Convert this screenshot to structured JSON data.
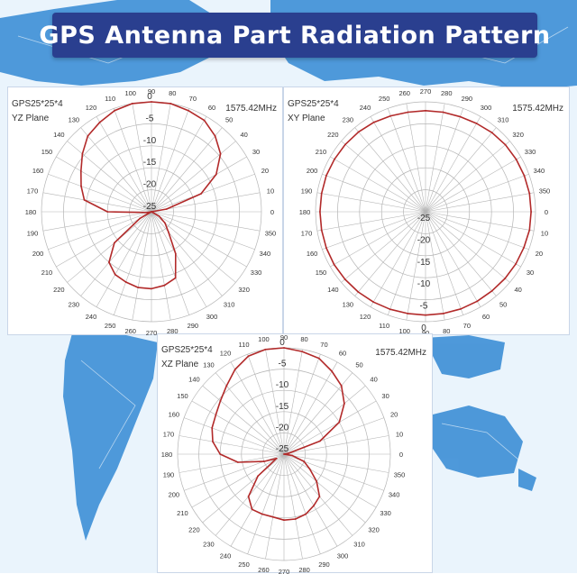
{
  "title": "GPS Antenna Part Radiation Pattern",
  "colors": {
    "banner": "#2a3f8f",
    "trace": "#b22a2a",
    "grid": "#b5b5b5",
    "map_land": "#3d8fd6",
    "map_sea": "#eaf4fc"
  },
  "chart_data": [
    {
      "type": "polar",
      "model": "GPS25*25*4",
      "plane": "YZ Plane",
      "frequency": "1575.42MHz",
      "radial_ticks": [
        "0",
        "-5",
        "-10",
        "-15",
        "-20",
        "-25"
      ],
      "rlim": [
        -25,
        0
      ],
      "angle_ticks": [
        "0",
        "10",
        "20",
        "30",
        "40",
        "50",
        "60",
        "70",
        "80",
        "90",
        "100",
        "110",
        "120",
        "130",
        "140",
        "150",
        "160",
        "170",
        "180",
        "190",
        "200",
        "210",
        "220",
        "230",
        "240",
        "250",
        "260",
        "270",
        "280",
        "290",
        "300",
        "310",
        "320",
        "330",
        "340",
        "350"
      ],
      "angle_zero": "right",
      "angle_direction": "counterclockwise",
      "series": [
        {
          "angles": [
            0,
            10,
            20,
            30,
            40,
            50,
            60,
            70,
            80,
            90,
            100,
            110,
            120,
            130,
            140,
            150,
            160,
            170,
            180,
            190,
            200,
            210,
            220,
            230,
            240,
            250,
            260,
            270,
            280,
            290,
            300,
            310,
            320,
            330,
            340,
            350
          ],
          "values": [
            -25,
            -21.5,
            -13,
            -8,
            -4.5,
            -2.5,
            -1,
            -0.5,
            0,
            0,
            0,
            -0.5,
            -1.5,
            -2.5,
            -4.5,
            -6.5,
            -8,
            -9.5,
            -15,
            -24,
            -25,
            -22,
            -14,
            -10,
            -8.5,
            -8,
            -7.5,
            -7.5,
            -8,
            -9,
            -14,
            -19,
            -21,
            -23,
            -25,
            -25
          ]
        }
      ]
    },
    {
      "type": "polar",
      "model": "GPS25*25*4",
      "plane": "XY Plane",
      "frequency": "1575.42MHz",
      "radial_ticks": [
        "0",
        "-5",
        "-10",
        "-15",
        "-20",
        "-25"
      ],
      "rlim": [
        -25,
        0
      ],
      "angle_ticks": [
        "0",
        "10",
        "20",
        "30",
        "40",
        "50",
        "60",
        "70",
        "80",
        "90",
        "100",
        "110",
        "120",
        "130",
        "140",
        "150",
        "160",
        "170",
        "180",
        "190",
        "200",
        "210",
        "220",
        "230",
        "240",
        "250",
        "260",
        "270",
        "280",
        "290",
        "300",
        "310",
        "320",
        "330",
        "340",
        "350"
      ],
      "angle_zero": "right",
      "angle_direction": "clockwise",
      "series": [
        {
          "angles": [
            0,
            10,
            20,
            30,
            40,
            50,
            60,
            70,
            80,
            90,
            100,
            110,
            120,
            130,
            140,
            150,
            160,
            170,
            180,
            190,
            200,
            210,
            220,
            230,
            240,
            250,
            260,
            270,
            280,
            290,
            300,
            310,
            320,
            330,
            340,
            350
          ],
          "values": [
            -1,
            -1,
            -1.2,
            -1.3,
            -1.4,
            -1.5,
            -1.5,
            -1.5,
            -1.5,
            -1.5,
            -1.5,
            -1.4,
            -1.3,
            -1.2,
            -1.1,
            -1,
            -1,
            -1,
            -1,
            -1,
            -1,
            -1.1,
            -1.2,
            -1.3,
            -1.5,
            -1.8,
            -2,
            -2,
            -2,
            -2,
            -1.8,
            -1.5,
            -1.3,
            -1.2,
            -1.1,
            -1
          ]
        }
      ]
    },
    {
      "type": "polar",
      "model": "GPS25*25*4",
      "plane": "XZ Plane",
      "frequency": "1575.42MHz",
      "radial_ticks": [
        "0",
        "-5",
        "-10",
        "-15",
        "-20",
        "-25"
      ],
      "rlim": [
        -25,
        0
      ],
      "angle_ticks": [
        "0",
        "10",
        "20",
        "30",
        "40",
        "50",
        "60",
        "70",
        "80",
        "90",
        "100",
        "110",
        "120",
        "130",
        "140",
        "150",
        "160",
        "170",
        "180",
        "190",
        "200",
        "210",
        "220",
        "230",
        "240",
        "250",
        "260",
        "270",
        "280",
        "290",
        "300",
        "310",
        "320",
        "330",
        "340",
        "350"
      ],
      "angle_zero": "right",
      "angle_direction": "counterclockwise",
      "series": [
        {
          "angles": [
            0,
            10,
            20,
            30,
            40,
            50,
            60,
            70,
            80,
            90,
            100,
            110,
            120,
            130,
            140,
            150,
            160,
            170,
            180,
            190,
            200,
            210,
            220,
            230,
            240,
            250,
            260,
            270,
            280,
            290,
            300,
            310,
            320,
            330,
            340,
            350
          ],
          "values": [
            -25,
            -24,
            -16,
            -10,
            -6.5,
            -4,
            -2.5,
            -1,
            -0.5,
            0,
            0,
            -0.5,
            -2,
            -4,
            -5.5,
            -6.5,
            -7,
            -8,
            -10,
            -14,
            -20,
            -23,
            -17,
            -12,
            -10,
            -10,
            -10,
            -9.5,
            -9.5,
            -10,
            -11,
            -12,
            -15,
            -18,
            -20,
            -23
          ]
        }
      ]
    }
  ]
}
